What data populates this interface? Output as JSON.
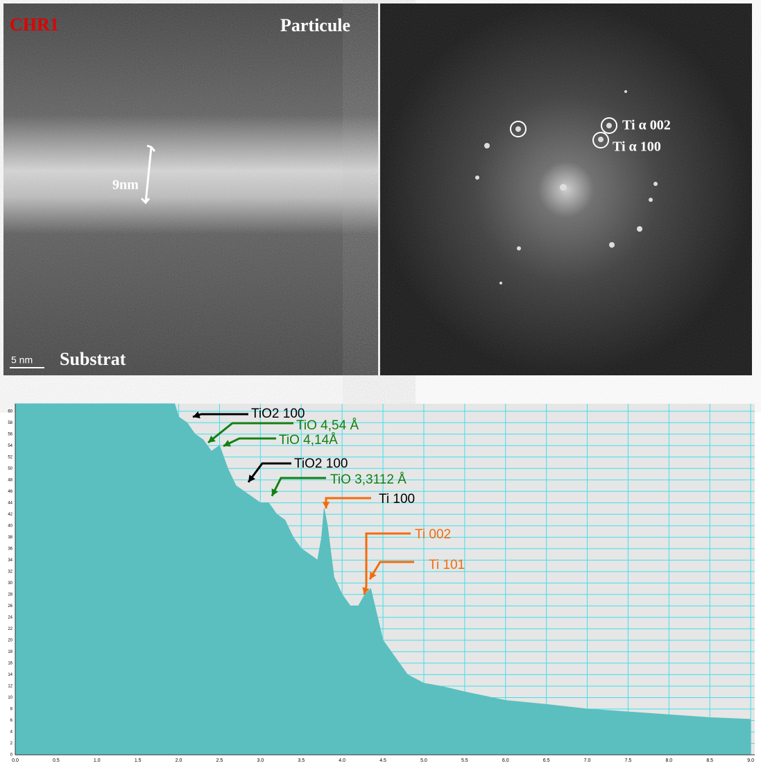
{
  "images": {
    "left": {
      "sample": "CHR1",
      "top_label": "Particule",
      "thickness": "9nm",
      "scale_bar": "5 nm",
      "bottom_label": "Substrat"
    },
    "right": {
      "spot_labels": [
        "Ti α 002",
        "Ti α 100"
      ]
    }
  },
  "chart_data": {
    "type": "area",
    "color": "#5bbfbf",
    "background": "#e6e6e6",
    "grid": true,
    "grid_color": "#3fe0ea",
    "x": [
      0,
      1.95,
      2.0,
      2.1,
      2.2,
      2.3,
      2.4,
      2.5,
      2.6,
      2.7,
      2.8,
      2.9,
      3.0,
      3.1,
      3.2,
      3.3,
      3.4,
      3.5,
      3.6,
      3.7,
      3.75,
      3.78,
      3.82,
      3.9,
      4.0,
      4.1,
      4.2,
      4.28,
      4.35,
      4.4,
      4.5,
      4.6,
      4.7,
      4.8,
      5.0,
      5.2,
      5.5,
      6.0,
      6.5,
      7.0,
      7.5,
      8.0,
      8.5,
      9.0
    ],
    "values": [
      61.3,
      61.3,
      59,
      58,
      56,
      55,
      53,
      54,
      50,
      47,
      46,
      45,
      44,
      44,
      42,
      41,
      38,
      36,
      35,
      34,
      38,
      43,
      40,
      31,
      28,
      26,
      26,
      28,
      29,
      26,
      20,
      18,
      16,
      14,
      12.5,
      12,
      11,
      9.5,
      8.8,
      8,
      7.5,
      7,
      6.5,
      6.2
    ],
    "xlim": [
      0,
      9.05
    ],
    "ylim": [
      0,
      61.3
    ],
    "xticks": [
      {
        "value": 0,
        "label": "0.0"
      },
      0.5,
      {
        "value": 1,
        "label": "1.0"
      },
      1.5,
      {
        "value": 2,
        "label": "2.0"
      },
      2.5,
      {
        "value": 3,
        "label": "3.0"
      },
      3.5,
      {
        "value": 4,
        "label": "4.0"
      },
      4.5,
      {
        "value": 5,
        "label": "5.0"
      },
      5.5,
      {
        "value": 6,
        "label": "6.0"
      },
      6.5,
      {
        "value": 7,
        "label": "7.0"
      },
      7.5,
      {
        "value": 8,
        "label": "8.0"
      },
      8.5,
      {
        "value": 9,
        "label": "9.0"
      }
    ],
    "yticks": [
      0,
      2,
      4,
      6,
      8,
      10,
      12,
      14,
      16,
      18,
      20,
      22,
      24,
      26,
      28,
      30,
      32,
      34,
      36,
      38,
      40,
      42,
      44,
      46,
      48,
      50,
      52,
      54,
      56,
      58,
      60
    ],
    "annotations": [
      {
        "text": "TiO2 100",
        "color": "#000000"
      },
      {
        "text": "TiO 4,54 Å",
        "color": "#138013"
      },
      {
        "text": "TiO 4,14Å",
        "color": "#138013"
      },
      {
        "text": "TiO2 100",
        "color": "#000000"
      },
      {
        "text": "TiO 3,3112 Å",
        "color": "#138013"
      },
      {
        "text": "Ti 100",
        "color": "#000000"
      },
      {
        "text": "Ti 002",
        "color": "#f26c0d"
      },
      {
        "text": "Ti 101",
        "color": "#f26c0d"
      }
    ]
  }
}
